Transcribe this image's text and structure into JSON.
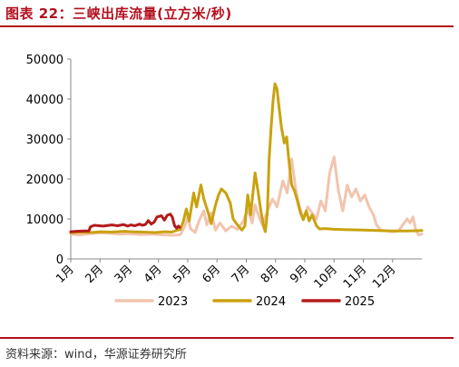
{
  "figure": {
    "title": "图表 22：三峡出库流量(立方米/秒)",
    "source": "资料来源：wind，华源证券研究所"
  },
  "chart_data": {
    "type": "line",
    "title": "",
    "xlabel": "",
    "ylabel": "",
    "ylim": [
      0,
      50000
    ],
    "y_ticks": [
      0,
      10000,
      20000,
      30000,
      40000,
      50000
    ],
    "x_tick_labels": [
      "1月",
      "2月",
      "3月",
      "4月",
      "5月",
      "6月",
      "7月",
      "8月",
      "9月",
      "10月",
      "11月",
      "12月"
    ],
    "x_unit": "month (1.0 = 1月1日)",
    "grid": false,
    "legend_position": "bottom",
    "colors": {
      "2023": "#f2c4ae",
      "2024": "#c9a20f",
      "2025": "#b51a1a"
    },
    "series": [
      {
        "name": "2023",
        "points": [
          [
            1.0,
            6200
          ],
          [
            1.3,
            6000
          ],
          [
            1.6,
            6300
          ],
          [
            2.0,
            6500
          ],
          [
            2.3,
            6400
          ],
          [
            2.7,
            6200
          ],
          [
            3.0,
            6300
          ],
          [
            3.4,
            6100
          ],
          [
            3.8,
            6200
          ],
          [
            4.2,
            6000
          ],
          [
            4.5,
            5900
          ],
          [
            4.75,
            6100
          ],
          [
            4.9,
            8200
          ],
          [
            5.0,
            10500
          ],
          [
            5.1,
            7500
          ],
          [
            5.25,
            6600
          ],
          [
            5.4,
            9800
          ],
          [
            5.55,
            12000
          ],
          [
            5.65,
            8500
          ],
          [
            5.8,
            11500
          ],
          [
            5.95,
            7200
          ],
          [
            6.1,
            9000
          ],
          [
            6.3,
            7000
          ],
          [
            6.5,
            8200
          ],
          [
            6.7,
            7400
          ],
          [
            6.9,
            9500
          ],
          [
            7.05,
            12500
          ],
          [
            7.2,
            9000
          ],
          [
            7.3,
            13500
          ],
          [
            7.45,
            10200
          ],
          [
            7.55,
            8500
          ],
          [
            7.75,
            12500
          ],
          [
            7.9,
            15000
          ],
          [
            8.05,
            13000
          ],
          [
            8.25,
            19500
          ],
          [
            8.4,
            16500
          ],
          [
            8.55,
            25000
          ],
          [
            8.7,
            17000
          ],
          [
            8.8,
            13500
          ],
          [
            8.95,
            10000
          ],
          [
            9.1,
            13000
          ],
          [
            9.25,
            11500
          ],
          [
            9.4,
            10000
          ],
          [
            9.55,
            14500
          ],
          [
            9.7,
            12000
          ],
          [
            9.85,
            21500
          ],
          [
            10.0,
            25500
          ],
          [
            10.15,
            17000
          ],
          [
            10.3,
            12000
          ],
          [
            10.45,
            18500
          ],
          [
            10.6,
            15500
          ],
          [
            10.75,
            17500
          ],
          [
            10.9,
            14500
          ],
          [
            11.05,
            16000
          ],
          [
            11.2,
            13000
          ],
          [
            11.35,
            11000
          ],
          [
            11.45,
            8500
          ],
          [
            11.6,
            7200
          ],
          [
            11.8,
            7000
          ],
          [
            12.0,
            6800
          ],
          [
            12.2,
            7000
          ],
          [
            12.35,
            8500
          ],
          [
            12.5,
            10000
          ],
          [
            12.6,
            9000
          ],
          [
            12.7,
            10500
          ],
          [
            12.8,
            7000
          ],
          [
            12.9,
            6000
          ],
          [
            13.0,
            6200
          ]
        ]
      },
      {
        "name": "2024",
        "points": [
          [
            1.0,
            6500
          ],
          [
            1.3,
            6700
          ],
          [
            1.7,
            6600
          ],
          [
            2.0,
            6800
          ],
          [
            2.4,
            6700
          ],
          [
            2.8,
            6900
          ],
          [
            3.1,
            6800
          ],
          [
            3.5,
            6700
          ],
          [
            3.9,
            6600
          ],
          [
            4.2,
            6800
          ],
          [
            4.45,
            6700
          ],
          [
            4.6,
            7100
          ],
          [
            4.75,
            7400
          ],
          [
            4.85,
            9500
          ],
          [
            4.95,
            12500
          ],
          [
            5.05,
            9500
          ],
          [
            5.2,
            16500
          ],
          [
            5.3,
            13000
          ],
          [
            5.45,
            18500
          ],
          [
            5.55,
            15000
          ],
          [
            5.7,
            11500
          ],
          [
            5.8,
            8800
          ],
          [
            5.95,
            13500
          ],
          [
            6.05,
            16000
          ],
          [
            6.15,
            17500
          ],
          [
            6.3,
            16500
          ],
          [
            6.45,
            14000
          ],
          [
            6.55,
            10000
          ],
          [
            6.7,
            8500
          ],
          [
            6.85,
            7200
          ],
          [
            6.95,
            8200
          ],
          [
            7.05,
            16000
          ],
          [
            7.15,
            11000
          ],
          [
            7.3,
            21500
          ],
          [
            7.4,
            17000
          ],
          [
            7.5,
            12000
          ],
          [
            7.6,
            8000
          ],
          [
            7.65,
            6800
          ],
          [
            7.72,
            11500
          ],
          [
            7.78,
            25000
          ],
          [
            7.85,
            33000
          ],
          [
            7.92,
            40000
          ],
          [
            7.98,
            43800
          ],
          [
            8.05,
            42500
          ],
          [
            8.12,
            38000
          ],
          [
            8.2,
            33000
          ],
          [
            8.3,
            29000
          ],
          [
            8.38,
            30500
          ],
          [
            8.45,
            25000
          ],
          [
            8.55,
            18500
          ],
          [
            8.65,
            17000
          ],
          [
            8.75,
            14500
          ],
          [
            8.85,
            11500
          ],
          [
            8.95,
            9800
          ],
          [
            9.05,
            12000
          ],
          [
            9.15,
            9500
          ],
          [
            9.25,
            11000
          ],
          [
            9.4,
            8300
          ],
          [
            9.5,
            7500
          ],
          [
            9.7,
            7600
          ],
          [
            10.0,
            7400
          ],
          [
            10.5,
            7300
          ],
          [
            11.0,
            7200
          ],
          [
            11.5,
            7100
          ],
          [
            12.0,
            7000
          ],
          [
            12.5,
            7000
          ],
          [
            13.0,
            7100
          ]
        ]
      },
      {
        "name": "2025",
        "points": [
          [
            1.0,
            6800
          ],
          [
            1.2,
            6900
          ],
          [
            1.45,
            7000
          ],
          [
            1.62,
            7000
          ],
          [
            1.67,
            8000
          ],
          [
            1.8,
            8400
          ],
          [
            2.1,
            8200
          ],
          [
            2.4,
            8500
          ],
          [
            2.6,
            8300
          ],
          [
            2.8,
            8600
          ],
          [
            2.95,
            8200
          ],
          [
            3.05,
            8500
          ],
          [
            3.2,
            8300
          ],
          [
            3.35,
            8700
          ],
          [
            3.45,
            8400
          ],
          [
            3.55,
            8600
          ],
          [
            3.65,
            9600
          ],
          [
            3.75,
            8700
          ],
          [
            3.85,
            9200
          ],
          [
            3.95,
            10500
          ],
          [
            4.1,
            10800
          ],
          [
            4.2,
            9700
          ],
          [
            4.3,
            10900
          ],
          [
            4.4,
            11200
          ],
          [
            4.47,
            10500
          ],
          [
            4.55,
            8300
          ],
          [
            4.62,
            7700
          ],
          [
            4.68,
            8200
          ],
          [
            4.72,
            7900
          ]
        ]
      }
    ]
  }
}
